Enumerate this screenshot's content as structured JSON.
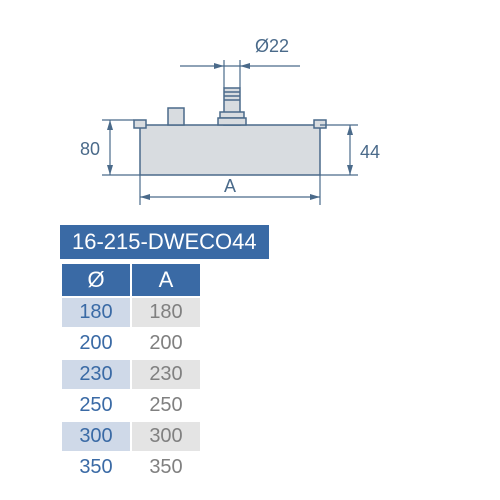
{
  "diagram": {
    "dim_top": "Ø22",
    "dim_left": "80",
    "dim_right": "44",
    "dim_bottom": "A",
    "colors": {
      "line": "#4a6a8a",
      "fill": "#d8dce0",
      "text": "#4a6a8a"
    }
  },
  "part_number": "16-215-DWECO44",
  "table": {
    "headers": {
      "col1": "Ø",
      "col2": "A"
    },
    "rows": [
      {
        "dia": "180",
        "a": "180",
        "alt": true
      },
      {
        "dia": "200",
        "a": "200",
        "alt": false
      },
      {
        "dia": "230",
        "a": "230",
        "alt": true
      },
      {
        "dia": "250",
        "a": "250",
        "alt": false
      },
      {
        "dia": "300",
        "a": "300",
        "alt": true
      },
      {
        "dia": "350",
        "a": "350",
        "alt": false
      }
    ]
  }
}
